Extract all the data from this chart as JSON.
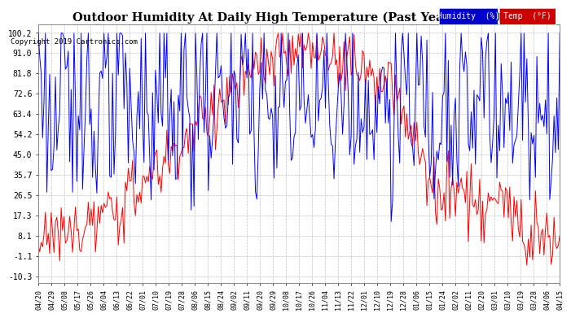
{
  "title": "Outdoor Humidity At Daily High Temperature (Past Year) 20190420",
  "copyright": "Copyright 2019 Cartronics.com",
  "yticks": [
    100.2,
    91.0,
    81.8,
    72.6,
    63.4,
    54.2,
    45.0,
    35.7,
    26.5,
    17.3,
    8.1,
    -1.1,
    -10.3
  ],
  "ylim": [
    -13.5,
    104
  ],
  "legend_labels": [
    "Humidity  (%)",
    "Temp  (°F)"
  ],
  "legend_bg_colors": [
    "#0000cc",
    "#cc0000"
  ],
  "line_colors": [
    "#0000ff",
    "#ff0000"
  ],
  "bg_color": "#ffffff",
  "grid_color": "#aaaaaa",
  "title_fontsize": 10.5,
  "xtick_dates": [
    "04/20",
    "04/29",
    "05/08",
    "05/17",
    "05/26",
    "06/04",
    "06/13",
    "06/22",
    "07/01",
    "07/10",
    "07/19",
    "07/28",
    "08/06",
    "08/15",
    "08/24",
    "09/02",
    "09/11",
    "09/20",
    "09/29",
    "10/08",
    "10/17",
    "10/26",
    "11/04",
    "11/13",
    "11/22",
    "12/01",
    "12/10",
    "12/19",
    "12/28",
    "01/06",
    "01/15",
    "01/24",
    "02/02",
    "02/11",
    "02/20",
    "03/01",
    "03/10",
    "03/19",
    "03/28",
    "04/06",
    "04/15"
  ],
  "n_points": 366
}
